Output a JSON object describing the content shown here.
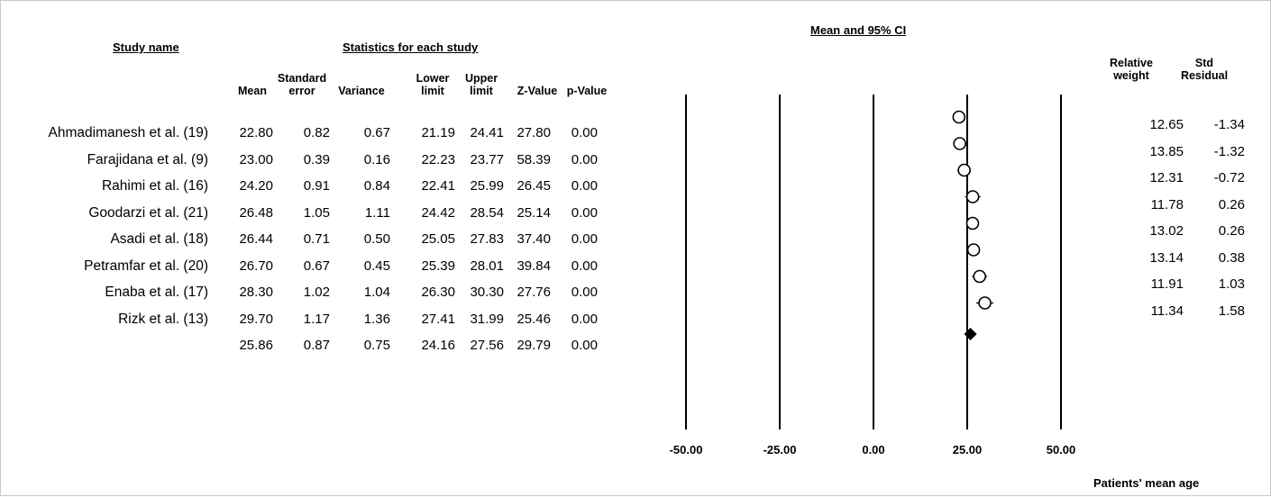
{
  "chart_data": {
    "type": "forest",
    "headers": {
      "study": "Study name",
      "stats": "Statistics for each study",
      "plot": "Mean and 95% CI",
      "mean": "Mean",
      "se_top": "Standard",
      "se_bottom": "error",
      "variance": "Variance",
      "lower_top": "Lower",
      "lower_bottom": "limit",
      "upper_top": "Upper",
      "upper_bottom": "limit",
      "z": "Z-Value",
      "p": "p-Value",
      "weight_top": "Relative",
      "weight_bottom": "weight",
      "resid_top": "Std",
      "resid_bottom": "Residual"
    },
    "xlabel": "Patients' mean age",
    "x_ticks": [
      "-50.00",
      "-25.00",
      "0.00",
      "25.00",
      "50.00"
    ],
    "x_tick_values": [
      -50,
      -25,
      0,
      25,
      50
    ],
    "xlim": [
      -50,
      50
    ],
    "studies": [
      {
        "name": "Ahmadimanesh et al. (19)",
        "mean": "22.80",
        "se": "0.82",
        "variance": "0.67",
        "lower": "21.19",
        "upper": "24.41",
        "z": "27.80",
        "p": "0.00",
        "weight": "12.65",
        "resid": "-1.34",
        "x": 22.8
      },
      {
        "name": "Farajidana et al. (9)",
        "mean": "23.00",
        "se": "0.39",
        "variance": "0.16",
        "lower": "22.23",
        "upper": "23.77",
        "z": "58.39",
        "p": "0.00",
        "weight": "13.85",
        "resid": "-1.32",
        "x": 23.0
      },
      {
        "name": "Rahimi et al. (16)",
        "mean": "24.20",
        "se": "0.91",
        "variance": "0.84",
        "lower": "22.41",
        "upper": "25.99",
        "z": "26.45",
        "p": "0.00",
        "weight": "12.31",
        "resid": "-0.72",
        "x": 24.2
      },
      {
        "name": "Goodarzi et al. (21)",
        "mean": "26.48",
        "se": "1.05",
        "variance": "1.11",
        "lower": "24.42",
        "upper": "28.54",
        "z": "25.14",
        "p": "0.00",
        "weight": "11.78",
        "resid": "0.26",
        "x": 26.48
      },
      {
        "name": "Asadi et al. (18)",
        "mean": "26.44",
        "se": "0.71",
        "variance": "0.50",
        "lower": "25.05",
        "upper": "27.83",
        "z": "37.40",
        "p": "0.00",
        "weight": "13.02",
        "resid": "0.26",
        "x": 26.44
      },
      {
        "name": "Petramfar et al. (20)",
        "mean": "26.70",
        "se": "0.67",
        "variance": "0.45",
        "lower": "25.39",
        "upper": "28.01",
        "z": "39.84",
        "p": "0.00",
        "weight": "13.14",
        "resid": "0.38",
        "x": 26.7
      },
      {
        "name": "Enaba et al. (17)",
        "mean": "28.30",
        "se": "1.02",
        "variance": "1.04",
        "lower": "26.30",
        "upper": "30.30",
        "z": "27.76",
        "p": "0.00",
        "weight": "11.91",
        "resid": "1.03",
        "x": 28.3
      },
      {
        "name": "Rizk et al. (13)",
        "mean": "29.70",
        "se": "1.17",
        "variance": "1.36",
        "lower": "27.41",
        "upper": "31.99",
        "z": "25.46",
        "p": "0.00",
        "weight": "11.34",
        "resid": "1.58",
        "x": 29.7
      }
    ],
    "summary": {
      "mean": "25.86",
      "se": "0.87",
      "variance": "0.75",
      "lower": "24.16",
      "upper": "27.56",
      "z": "29.79",
      "p": "0.00",
      "x": 25.86
    }
  }
}
